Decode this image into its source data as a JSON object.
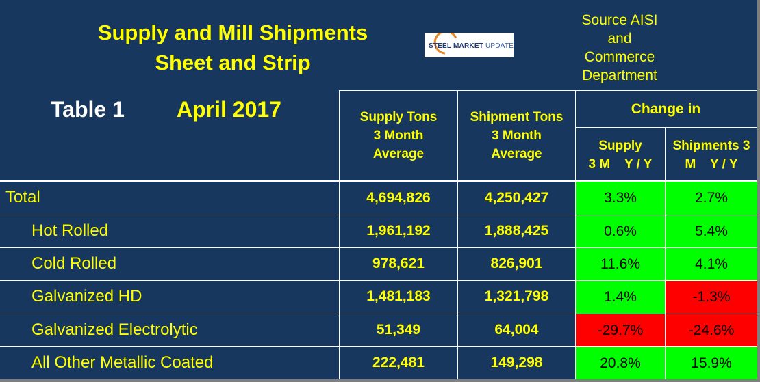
{
  "title": {
    "line1": "Supply and Mill Shipments",
    "line2": "Sheet and Strip"
  },
  "source": {
    "line1": "Source AISI",
    "line2": "and",
    "line3": "Commerce",
    "line4": "Department"
  },
  "logo": {
    "text_main": "STEEL MARKET",
    "text_accent": "UPDATE"
  },
  "table_label": "Table 1",
  "month_label": "April 2017",
  "headers": {
    "supply": [
      "Supply Tons",
      "3 Month",
      "Average"
    ],
    "shipment": [
      "Shipment Tons",
      "3 Month",
      "Average"
    ],
    "change_in": "Change in",
    "supply_change": [
      "Supply",
      "3 M    Y / Y"
    ],
    "shipments_change": [
      "Shipments 3",
      "M    Y / Y"
    ]
  },
  "rows": [
    {
      "label": "Total",
      "supply": "4,694,826",
      "shipment": "4,250,427",
      "supply_change": "3.3%",
      "shipments_change": "2.7%",
      "supply_change_color": "#00ff00",
      "shipments_change_color": "#00ff00"
    },
    {
      "label": "Hot Rolled",
      "supply": "1,961,192",
      "shipment": "1,888,425",
      "supply_change": "0.6%",
      "shipments_change": "5.4%",
      "supply_change_color": "#00ff00",
      "shipments_change_color": "#00ff00"
    },
    {
      "label": "Cold Rolled",
      "supply": "978,621",
      "shipment": "826,901",
      "supply_change": "11.6%",
      "shipments_change": "4.1%",
      "supply_change_color": "#00ff00",
      "shipments_change_color": "#00ff00"
    },
    {
      "label": "Galvanized HD",
      "supply": "1,481,183",
      "shipment": "1,321,798",
      "supply_change": "1.4%",
      "shipments_change": "-1.3%",
      "supply_change_color": "#00ff00",
      "shipments_change_color": "#ff0000"
    },
    {
      "label": "Galvanized Electrolytic",
      "supply": "51,349",
      "shipment": "64,004",
      "supply_change": "-29.7%",
      "shipments_change": "-24.6%",
      "supply_change_color": "#ff0000",
      "shipments_change_color": "#ff0000"
    },
    {
      "label": "All Other Metallic Coated",
      "supply": "222,481",
      "shipment": "149,298",
      "supply_change": "20.8%",
      "shipments_change": "15.9%",
      "supply_change_color": "#00ff00",
      "shipments_change_color": "#00ff00"
    }
  ],
  "colors": {
    "background": "#17375e",
    "text_yellow": "#ffff00",
    "positive": "#00ff00",
    "negative": "#ff0000"
  }
}
